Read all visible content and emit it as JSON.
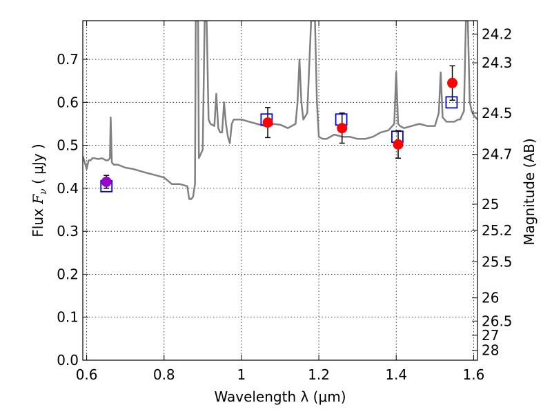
{
  "chart_data": {
    "type": "scatter",
    "xlabel": "Wavelength  λ (μm)",
    "ylabel_parts": {
      "prefix": "Flux  ",
      "symbol": "F",
      "subscript": "ν",
      "unit": "  ( μJy )"
    },
    "y2label": "Magnitude (AB)",
    "xlim": [
      0.59,
      1.61
    ],
    "ylim": [
      0.0,
      0.79
    ],
    "x_ticks": [
      0.6,
      0.8,
      1.0,
      1.2,
      1.4,
      1.6
    ],
    "x_tick_labels": [
      "0.6",
      "0.8",
      "1",
      "1.2",
      "1.4",
      "1.6"
    ],
    "y_ticks": [
      0.0,
      0.1,
      0.2,
      0.3,
      0.4,
      0.5,
      0.6,
      0.7
    ],
    "y_tick_labels": [
      "0.0",
      "0.1",
      "0.2",
      "0.3",
      "0.4",
      "0.5",
      "0.6",
      "0.7"
    ],
    "y2_ticks": [
      {
        "label": "24.2",
        "flux": 0.759
      },
      {
        "label": "24.3",
        "flux": 0.692
      },
      {
        "label": "24.5",
        "flux": 0.575
      },
      {
        "label": "24.7",
        "flux": 0.479
      },
      {
        "label": "25",
        "flux": 0.363
      },
      {
        "label": "25.2",
        "flux": 0.302
      },
      {
        "label": "25.5",
        "flux": 0.229
      },
      {
        "label": "26",
        "flux": 0.145
      },
      {
        "label": "26.5",
        "flux": 0.091
      },
      {
        "label": "27",
        "flux": 0.058
      },
      {
        "label": "28",
        "flux": 0.023
      }
    ],
    "grid": true,
    "series": [
      {
        "kind": "line",
        "color": "#808080",
        "x": [
          0.59,
          0.595,
          0.6,
          0.605,
          0.61,
          0.615,
          0.62,
          0.63,
          0.64,
          0.65,
          0.655,
          0.66,
          0.662,
          0.665,
          0.67,
          0.68,
          0.7,
          0.72,
          0.75,
          0.78,
          0.8,
          0.82,
          0.84,
          0.86,
          0.865,
          0.87,
          0.875,
          0.88,
          0.882,
          0.884,
          0.886,
          0.888,
          0.89,
          0.9,
          0.905,
          0.91,
          0.915,
          0.92,
          0.93,
          0.935,
          0.94,
          0.945,
          0.95,
          0.955,
          0.96,
          0.965,
          0.97,
          0.975,
          0.98,
          1.0,
          1.02,
          1.04,
          1.06,
          1.07,
          1.08,
          1.1,
          1.12,
          1.14,
          1.145,
          1.15,
          1.155,
          1.16,
          1.17,
          1.18,
          1.19,
          1.195,
          1.2,
          1.21,
          1.22,
          1.24,
          1.26,
          1.28,
          1.3,
          1.32,
          1.34,
          1.36,
          1.38,
          1.395,
          1.4,
          1.405,
          1.41,
          1.42,
          1.44,
          1.46,
          1.48,
          1.5,
          1.51,
          1.515,
          1.52,
          1.525,
          1.53,
          1.54,
          1.55,
          1.56,
          1.565,
          1.57,
          1.575,
          1.58,
          1.585,
          1.59,
          1.595,
          1.6,
          1.61
        ],
        "y": [
          0.475,
          0.46,
          0.445,
          0.465,
          0.465,
          0.47,
          0.47,
          0.468,
          0.47,
          0.465,
          0.465,
          0.47,
          0.565,
          0.46,
          0.455,
          0.455,
          0.448,
          0.445,
          0.437,
          0.43,
          0.425,
          0.41,
          0.41,
          0.405,
          0.375,
          0.375,
          0.38,
          0.41,
          0.79,
          0.79,
          0.79,
          0.79,
          0.47,
          0.49,
          0.79,
          0.79,
          0.56,
          0.55,
          0.545,
          0.62,
          0.54,
          0.53,
          0.53,
          0.6,
          0.55,
          0.52,
          0.505,
          0.55,
          0.56,
          0.56,
          0.555,
          0.55,
          0.545,
          0.55,
          0.55,
          0.548,
          0.54,
          0.55,
          0.6,
          0.7,
          0.6,
          0.56,
          0.575,
          0.79,
          0.79,
          0.6,
          0.52,
          0.515,
          0.515,
          0.525,
          0.52,
          0.52,
          0.515,
          0.515,
          0.52,
          0.53,
          0.535,
          0.55,
          0.67,
          0.55,
          0.545,
          0.54,
          0.545,
          0.55,
          0.545,
          0.545,
          0.575,
          0.67,
          0.565,
          0.56,
          0.555,
          0.555,
          0.555,
          0.56,
          0.56,
          0.57,
          0.58,
          0.79,
          0.79,
          0.6,
          0.58,
          0.57,
          0.56
        ]
      },
      {
        "kind": "open-squares",
        "color": "#0000ff",
        "x": [
          0.651,
          1.065,
          1.258,
          1.403,
          1.543
        ],
        "y": [
          0.405,
          0.56,
          0.56,
          0.52,
          0.6
        ]
      },
      {
        "kind": "points-with-errorbars",
        "color": "#ff0000",
        "x": [
          1.068,
          1.26,
          1.405,
          1.545
        ],
        "y": [
          0.553,
          0.54,
          0.502,
          0.645
        ],
        "err": [
          0.035,
          0.035,
          0.032,
          0.04
        ]
      },
      {
        "kind": "points-with-errorbars",
        "color": "#9900cc",
        "x": [
          0.651
        ],
        "y": [
          0.415
        ],
        "err": [
          0.015
        ]
      }
    ]
  }
}
